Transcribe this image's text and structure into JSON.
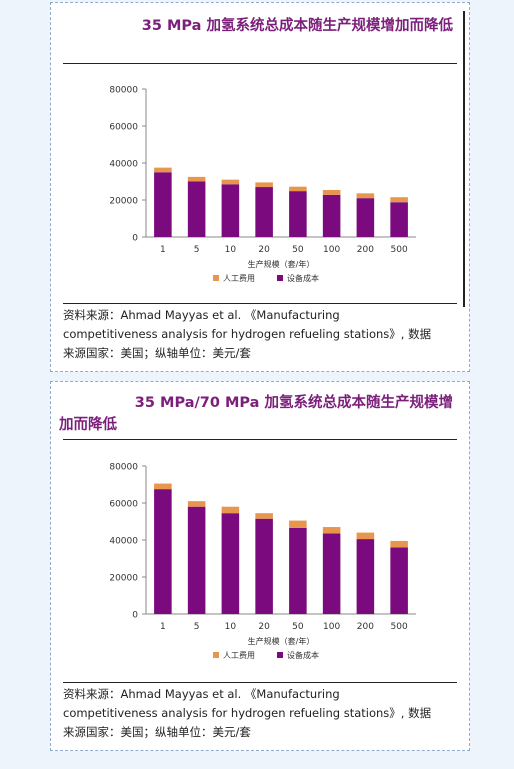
{
  "charts": [
    {
      "title": "35 MPa 加氢系统总成本随生产规模增加而降低",
      "source_lines": [
        "资料来源：Ahmad Mayyas et al. 《Manufacturing",
        "competitiveness analysis for hydrogen refueling stations》, 数据",
        "来源国家：美国；纵轴单位：美元/套"
      ]
    },
    {
      "title_lines": [
        "35 MPa/70 MPa 加氢系统总成本随生产规模增",
        "加而降低"
      ],
      "source_lines": [
        "资料来源：Ahmad Mayyas et al. 《Manufacturing",
        "competitiveness analysis for hydrogen refueling stations》, 数据",
        "来源国家：美国；纵轴单位：美元/套"
      ]
    }
  ],
  "chart_data": [
    {
      "type": "bar",
      "stacked": true,
      "categories": [
        "1",
        "5",
        "10",
        "20",
        "50",
        "100",
        "200",
        "500"
      ],
      "xlabel": "生产规模（套/年）",
      "ylabel": "",
      "ylim": [
        0,
        80000
      ],
      "yticks": [
        "0",
        "20000",
        "40000",
        "60000",
        "80000"
      ],
      "series": [
        {
          "name": "设备成本",
          "color": "#7b0a7e",
          "values": [
            35000,
            30000,
            28500,
            27000,
            24800,
            22800,
            21000,
            18800
          ]
        },
        {
          "name": "人工费用",
          "color": "#e8954e",
          "values": [
            2500,
            2500,
            2500,
            2500,
            2400,
            2600,
            2600,
            2700
          ]
        }
      ],
      "legend": "bottom-center"
    },
    {
      "type": "bar",
      "stacked": true,
      "categories": [
        "1",
        "5",
        "10",
        "20",
        "50",
        "100",
        "200",
        "500"
      ],
      "xlabel": "生产规模（套/年）",
      "ylabel": "",
      "ylim": [
        0,
        80000
      ],
      "yticks": [
        "0",
        "20000",
        "40000",
        "60000",
        "80000"
      ],
      "series": [
        {
          "name": "设备成本",
          "color": "#7b0a7e",
          "values": [
            67500,
            58000,
            54500,
            51500,
            46500,
            43500,
            40500,
            36000
          ]
        },
        {
          "name": "人工费用",
          "color": "#e8954e",
          "values": [
            3000,
            3000,
            3500,
            3000,
            4000,
            3500,
            3500,
            3500
          ]
        }
      ],
      "legend": "bottom-center"
    }
  ]
}
